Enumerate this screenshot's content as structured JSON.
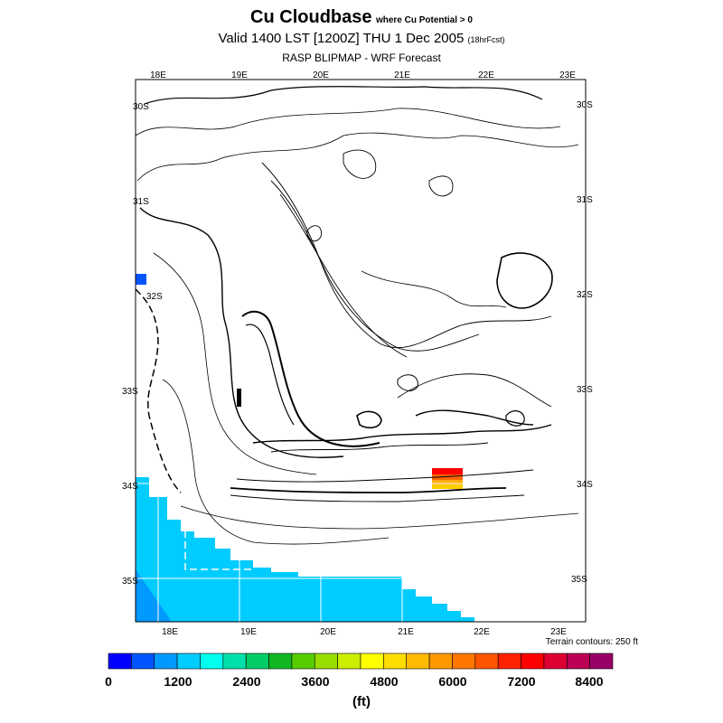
{
  "title": {
    "main": "Cu Cloudbase",
    "condition": "where Cu Potential > 0",
    "valid": "Valid 1400 LST [1200Z] THU 1 Dec 2005",
    "forecast_hours": "(18hrFcst)",
    "model": "RASP BLIPMAP - WRF Forecast"
  },
  "map": {
    "lon_labels_top": [
      "18E",
      "19E",
      "20E",
      "21E",
      "22E",
      "23E"
    ],
    "lon_labels_bottom": [
      "18E",
      "19E",
      "20E",
      "21E",
      "22E",
      "23E"
    ],
    "lat_labels_left": [
      "30S",
      "31S",
      "32S",
      "33S",
      "34S",
      "35S"
    ],
    "lat_labels_right": [
      "30S",
      "31S",
      "32S",
      "33S",
      "34S",
      "35S"
    ],
    "terrain_note": "Terrain contours: 250 ft",
    "ocean_color": "#00ccff",
    "cloudbase_patch_colors": [
      "#ff0000",
      "#ff6600",
      "#ffaa00",
      "#ffcc00"
    ]
  },
  "colorbar": {
    "unit": "(ft)",
    "labels": [
      "0",
      "1200",
      "2400",
      "3600",
      "4800",
      "6000",
      "7200",
      "8400"
    ],
    "colors": [
      "#0000ff",
      "#0055ff",
      "#0099ff",
      "#00ccff",
      "#00ffee",
      "#00e0aa",
      "#00cc66",
      "#11b822",
      "#55cc00",
      "#99dd00",
      "#ccee00",
      "#ffff00",
      "#ffdd00",
      "#ffbb00",
      "#ff9900",
      "#ff7700",
      "#ff5500",
      "#ff2200",
      "#ff0000",
      "#dd0033",
      "#bb0055",
      "#990066"
    ]
  }
}
